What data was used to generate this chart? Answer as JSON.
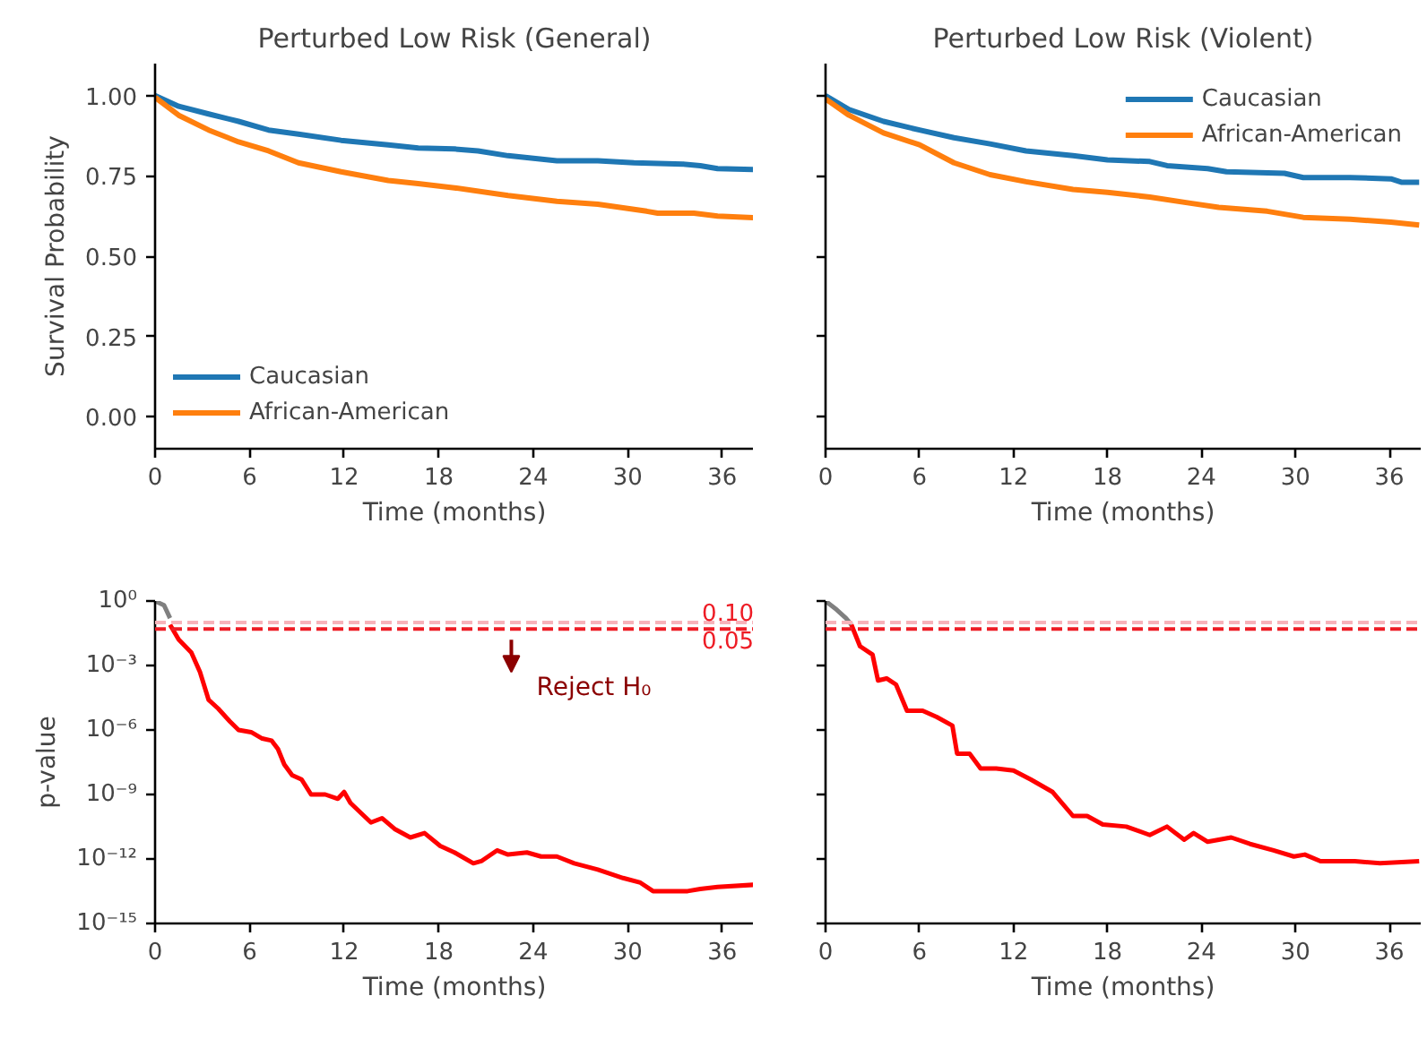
{
  "chart_data": [
    {
      "type": "line",
      "title": "Perturbed Low Risk (General)",
      "xlabel": "Time (months)",
      "ylabel": "Survival Probability",
      "xlim": [
        0,
        38
      ],
      "ylim": [
        -0.1,
        1.1
      ],
      "xticks": [
        0,
        6,
        12,
        18,
        24,
        30,
        36
      ],
      "yticks": [
        {
          "value": 0,
          "label": "0.00"
        },
        {
          "value": 0.25,
          "label": "0.25"
        },
        {
          "value": 0.5,
          "label": "0.50"
        },
        {
          "value": 0.75,
          "label": "0.75"
        },
        {
          "value": 1,
          "label": "1.00"
        }
      ],
      "legend": "bottom left",
      "series": [
        {
          "name": "Caucasian",
          "color": "#1f77b4",
          "x": [
            0,
            1.5,
            3.4,
            5.3,
            7.2,
            9.1,
            11.8,
            14.8,
            16.7,
            19.0,
            20.5,
            22.4,
            25.5,
            28.1,
            30.4,
            33.5,
            34.6,
            35.7,
            38
          ],
          "values": [
            1.0,
            0.967,
            0.943,
            0.92,
            0.893,
            0.88,
            0.861,
            0.847,
            0.837,
            0.834,
            0.828,
            0.813,
            0.797,
            0.797,
            0.791,
            0.787,
            0.782,
            0.773,
            0.77
          ]
        },
        {
          "name": "African-American",
          "color": "#ff7f0e",
          "x": [
            0,
            1.5,
            3.4,
            5.3,
            7.2,
            9.1,
            11.8,
            14.8,
            16.7,
            19.0,
            22.4,
            25.5,
            28.1,
            31.2,
            31.9,
            34.2,
            35.7,
            38
          ],
          "values": [
            0.995,
            0.939,
            0.893,
            0.856,
            0.828,
            0.791,
            0.763,
            0.736,
            0.726,
            0.713,
            0.689,
            0.671,
            0.662,
            0.64,
            0.634,
            0.634,
            0.625,
            0.62
          ]
        }
      ]
    },
    {
      "type": "line",
      "title": "Perturbed Low Risk (Violent)",
      "xlabel": "Time (months)",
      "xlim": [
        0,
        38
      ],
      "ylim": [
        -0.1,
        1.1
      ],
      "xticks": [
        0,
        6,
        12,
        18,
        24,
        30,
        36
      ],
      "yticks": [
        0,
        0.25,
        0.5,
        0.75,
        1
      ],
      "tick_labels": "x",
      "legend": "top right",
      "series": [
        {
          "name": "Caucasian",
          "color": "#1f77b4",
          "x": [
            0,
            1.5,
            3.7,
            6.0,
            8.2,
            10.5,
            12.8,
            15.8,
            18.0,
            20.7,
            21.8,
            24.4,
            25.6,
            29.3,
            30.5,
            33.5,
            36.1,
            36.8,
            37.9
          ],
          "values": [
            1.0,
            0.957,
            0.92,
            0.893,
            0.869,
            0.85,
            0.828,
            0.813,
            0.8,
            0.795,
            0.782,
            0.773,
            0.763,
            0.758,
            0.745,
            0.745,
            0.741,
            0.73,
            0.73
          ]
        },
        {
          "name": "African-American",
          "color": "#ff7f0e",
          "x": [
            0,
            1.5,
            3.7,
            6.0,
            8.2,
            10.5,
            12.8,
            15.8,
            18.0,
            20.7,
            23.3,
            25.1,
            28.2,
            30.5,
            33.5,
            36.1,
            37.9
          ],
          "values": [
            0.99,
            0.939,
            0.884,
            0.847,
            0.791,
            0.754,
            0.732,
            0.708,
            0.699,
            0.684,
            0.665,
            0.652,
            0.64,
            0.621,
            0.615,
            0.606,
            0.597
          ]
        }
      ]
    },
    {
      "type": "line",
      "xlabel": "Time (months)",
      "ylabel": "p-value",
      "log": "y",
      "xlim": [
        0,
        38
      ],
      "ylim": [
        1e-15,
        1
      ],
      "xticks": [
        0,
        6,
        12,
        18,
        24,
        30,
        36
      ],
      "yticks": [
        {
          "value": 1,
          "label": "10⁰"
        },
        {
          "value": 0.001,
          "label": "10⁻³"
        },
        {
          "value": 1e-06,
          "label": "10⁻⁶"
        },
        {
          "value": 1e-09,
          "label": "10⁻⁹"
        },
        {
          "value": 1e-12,
          "label": "10⁻¹²"
        },
        {
          "value": 1e-15,
          "label": "10⁻¹⁵"
        }
      ],
      "ref_lines": [
        {
          "axis": "y",
          "value": 0.1,
          "label": "0.10",
          "color": "#f7b3ba",
          "line_style": "dashed"
        },
        {
          "axis": "y",
          "value": 0.05,
          "label": "0.05",
          "color": "#ee1c25",
          "line_style": "dashed"
        }
      ],
      "annotations": [
        "Reject H₀"
      ],
      "series": [
        {
          "color": "#808080",
          "x": [
            0,
            0.57,
            0.95
          ],
          "values": [
            1,
            0.63,
            0.16
          ]
        },
        {
          "color": "#ff0000",
          "x": [
            0.95,
            1.5,
            2.3,
            2.85,
            3.4,
            4.0,
            4.75,
            5.3,
            6.1,
            6.8,
            7.4,
            7.8,
            8.2,
            8.7,
            9.3,
            9.9,
            10.8,
            11.6,
            12.0,
            12.4,
            13.1,
            13.7,
            14.4,
            15.2,
            16.2,
            17.1,
            18.1,
            19.0,
            20.2,
            20.7,
            21.7,
            22.4,
            23.6,
            24.5,
            25.5,
            26.6,
            28.1,
            29.7,
            30.8,
            31.6,
            33.8,
            34.6,
            35.7,
            38
          ],
          "values": [
            0.079,
            0.016,
            0.004,
            0.0005,
            2.5e-05,
            1e-05,
            2.5e-06,
            1e-06,
            7.9e-07,
            4e-07,
            3.2e-07,
            1.3e-07,
            2.5e-08,
            7.9e-09,
            5e-09,
            1e-09,
            1e-09,
            6.3e-10,
            1.3e-09,
            4e-10,
            1.3e-10,
            5e-11,
            7.9e-11,
            2.5e-11,
            1e-11,
            1.6e-11,
            4e-12,
            2e-12,
            6.3e-13,
            7.9e-13,
            2.5e-12,
            1.6e-12,
            2e-12,
            1.3e-12,
            1.3e-12,
            6.3e-13,
            3.2e-13,
            1.3e-13,
            7.9e-14,
            3.2e-14,
            3.2e-14,
            4e-14,
            5e-14,
            6.3e-14
          ]
        }
      ]
    },
    {
      "type": "line",
      "xlabel": "Time (months)",
      "log": "y",
      "xlim": [
        0,
        38
      ],
      "ylim": [
        1e-15,
        1
      ],
      "xticks": [
        0,
        6,
        12,
        18,
        24,
        30,
        36
      ],
      "yticks": [
        1,
        0.001,
        1e-06,
        1e-09,
        1e-12,
        1e-15
      ],
      "tick_labels": "x",
      "ref_lines": [
        {
          "axis": "y",
          "value": 0.1,
          "color": "#f7b3ba",
          "line_style": "dashed"
        },
        {
          "axis": "y",
          "value": 0.05,
          "color": "#ee1c25",
          "line_style": "dashed"
        }
      ],
      "series": [
        {
          "color": "#808080",
          "x": [
            0,
            0.7,
            1.3,
            1.65
          ],
          "values": [
            1,
            0.4,
            0.16,
            0.079
          ]
        },
        {
          "color": "#ff0000",
          "x": [
            1.65,
            2.2,
            3.0,
            3.35,
            3.9,
            4.5,
            5.2,
            6.2,
            7.1,
            8.1,
            8.4,
            9.2,
            9.9,
            10.9,
            12.0,
            13.1,
            14.5,
            15.8,
            16.7,
            17.7,
            19.2,
            20.7,
            21.8,
            22.9,
            23.5,
            24.4,
            25.9,
            27.1,
            28.6,
            29.9,
            30.6,
            31.6,
            33.8,
            35.4,
            37.9
          ],
          "values": [
            0.079,
            0.0079,
            0.0032,
            0.0002,
            0.00025,
            0.00013,
            7.9e-06,
            7.9e-06,
            4e-06,
            1.6e-06,
            7.9e-08,
            7.9e-08,
            1.6e-08,
            1.6e-08,
            1.3e-08,
            5e-09,
            1.3e-09,
            1e-10,
            1e-10,
            4e-11,
            3.2e-11,
            1.3e-11,
            3.2e-11,
            7.9e-12,
            1.6e-11,
            6.3e-12,
            1e-11,
            5e-12,
            2.5e-12,
            1.3e-12,
            1.6e-12,
            7.9e-13,
            7.9e-13,
            6.3e-13,
            7.9e-13
          ]
        }
      ]
    }
  ]
}
